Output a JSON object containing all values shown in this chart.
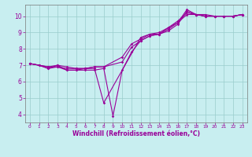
{
  "title": "",
  "xlabel": "Windchill (Refroidissement éolien,°C)",
  "bg_color": "#c8eef0",
  "line_color": "#990099",
  "grid_color": "#99cccc",
  "xlim": [
    -0.5,
    23.5
  ],
  "ylim": [
    3.5,
    10.7
  ],
  "yticks": [
    4,
    5,
    6,
    7,
    8,
    9,
    10
  ],
  "xticks": [
    0,
    1,
    2,
    3,
    4,
    5,
    6,
    7,
    8,
    9,
    10,
    11,
    12,
    13,
    14,
    15,
    16,
    17,
    18,
    19,
    20,
    21,
    22,
    23
  ],
  "series": [
    {
      "x": [
        0,
        1,
        2,
        3,
        4,
        5,
        6,
        7,
        8,
        9,
        10,
        11,
        12,
        13,
        14,
        15,
        16,
        17,
        18,
        19,
        20,
        21,
        22,
        23
      ],
      "y": [
        7.1,
        7.0,
        6.8,
        6.9,
        6.7,
        6.7,
        6.7,
        6.7,
        6.8,
        3.9,
        6.7,
        7.8,
        8.5,
        8.8,
        8.9,
        9.1,
        9.5,
        10.3,
        10.1,
        10.0,
        10.0,
        10.0,
        10.0,
        10.1
      ]
    },
    {
      "x": [
        0,
        1,
        2,
        3,
        4,
        5,
        6,
        7,
        8,
        12,
        13,
        14,
        15,
        16,
        17,
        18,
        19,
        20,
        21,
        22,
        23
      ],
      "y": [
        7.1,
        7.0,
        6.8,
        7.0,
        6.7,
        6.7,
        6.8,
        6.8,
        4.7,
        8.7,
        8.9,
        8.9,
        9.2,
        9.6,
        10.4,
        10.1,
        10.1,
        10.0,
        10.0,
        10.0,
        10.1
      ]
    },
    {
      "x": [
        0,
        2,
        3,
        4,
        5,
        6,
        7,
        8,
        10,
        11,
        12,
        13,
        14,
        15,
        16,
        17,
        18,
        19,
        20,
        21,
        22,
        23
      ],
      "y": [
        7.1,
        6.9,
        7.0,
        6.9,
        6.8,
        6.8,
        6.9,
        6.9,
        7.5,
        8.3,
        8.6,
        8.9,
        9.0,
        9.3,
        9.7,
        10.2,
        10.1,
        10.0,
        10.0,
        10.0,
        10.0,
        10.1
      ]
    },
    {
      "x": [
        0,
        2,
        3,
        4,
        5,
        6,
        7,
        8,
        10,
        11,
        12,
        13,
        14,
        15,
        16,
        17,
        18,
        19,
        20,
        21,
        22,
        23
      ],
      "y": [
        7.1,
        6.9,
        6.9,
        6.8,
        6.8,
        6.8,
        6.9,
        6.9,
        7.2,
        8.1,
        8.5,
        8.8,
        8.9,
        9.3,
        9.6,
        10.1,
        10.1,
        10.0,
        10.0,
        10.0,
        10.0,
        10.1
      ]
    }
  ],
  "figsize": [
    3.2,
    2.0
  ],
  "dpi": 100
}
